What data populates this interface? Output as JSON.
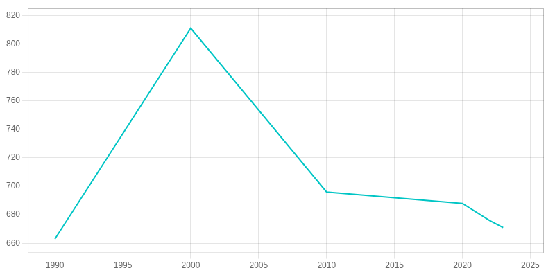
{
  "chart_data": {
    "type": "line",
    "x": [
      1990,
      2000,
      2010,
      2015,
      2020,
      2022,
      2023
    ],
    "values": [
      663,
      811,
      696,
      692,
      688,
      676,
      671
    ],
    "color": "#00C5C5",
    "xlim": [
      1988,
      2026
    ],
    "xticks": [
      1990,
      1995,
      2000,
      2005,
      2010,
      2015,
      2020,
      2025
    ],
    "ylim": [
      653,
      825
    ],
    "yticks": [
      660,
      680,
      700,
      720,
      740,
      760,
      780,
      800,
      820
    ],
    "grid": true
  }
}
